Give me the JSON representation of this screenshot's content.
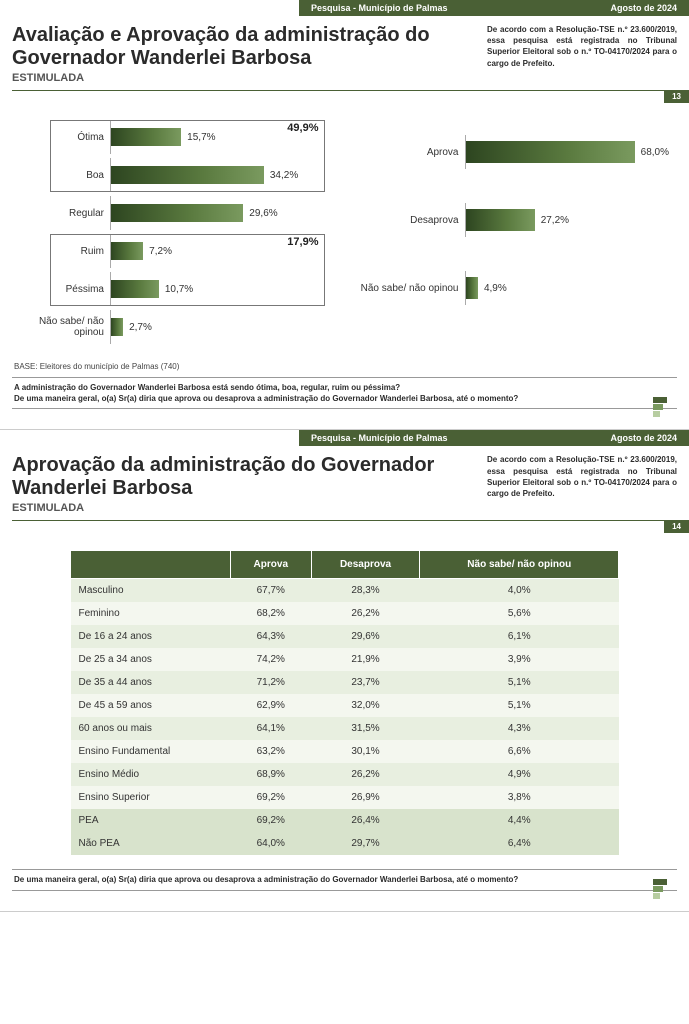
{
  "colors": {
    "brand": "#4a6035",
    "bar_gradient_start": "#2d4520",
    "bar_gradient_mid": "#5a7a3f",
    "bar_gradient_end": "#7a9a5f",
    "row_even": "#e8efe0",
    "row_odd": "#f4f7ef",
    "row_alt": "#d8e3cc"
  },
  "header": {
    "survey_label": "Pesquisa - Município de Palmas",
    "date_label": "Agosto de 2024",
    "disclaimer": "De acordo com a Resolução-TSE n.º 23.600/2019, essa pesquisa está registrada no Tribunal Superior Eleitoral sob o n.º TO-04170/2024 para o cargo de Prefeito."
  },
  "slide1": {
    "title": "Avaliação e Aprovação da administração do Governador Wanderlei Barbosa",
    "subtitle": "ESTIMULADA",
    "page_num": "13",
    "chart_left": {
      "type": "bar",
      "max": 50,
      "bars": [
        {
          "label": "Ótima",
          "value": 15.7,
          "text": "15,7%"
        },
        {
          "label": "Boa",
          "value": 34.2,
          "text": "34,2%"
        },
        {
          "label": "Regular",
          "value": 29.6,
          "text": "29,6%"
        },
        {
          "label": "Ruim",
          "value": 7.2,
          "text": "7,2%"
        },
        {
          "label": "Péssima",
          "value": 10.7,
          "text": "10,7%"
        },
        {
          "label": "Não sabe/ não opinou",
          "value": 2.7,
          "text": "2,7%"
        }
      ],
      "groups": [
        {
          "label": "49,9%",
          "start": 0,
          "end": 1
        },
        {
          "label": "17,9%",
          "start": 3,
          "end": 4
        }
      ]
    },
    "chart_right": {
      "type": "bar",
      "max": 80,
      "bars": [
        {
          "label": "Aprova",
          "value": 68.0,
          "text": "68,0%"
        },
        {
          "label": "Desaprova",
          "value": 27.2,
          "text": "27,2%"
        },
        {
          "label": "Não sabe/ não opinou",
          "value": 4.9,
          "text": "4,9%"
        }
      ]
    },
    "base": "BASE: Eleitores do município de Palmas (740)",
    "q1": "A administração do Governador Wanderlei Barbosa está sendo ótima, boa, regular, ruim ou péssima?",
    "q2": "De uma maneira geral, o(a) Sr(a) diria que aprova ou desaprova a administração do Governador Wanderlei Barbosa, até o momento?"
  },
  "slide2": {
    "title": "Aprovação da administração do Governador Wanderlei Barbosa",
    "subtitle": "ESTIMULADA",
    "page_num": "14",
    "table": {
      "columns": [
        "",
        "Aprova",
        "Desaprova",
        "Não sabe/ não opinou"
      ],
      "row_styles": [
        "r0",
        "r1",
        "r0",
        "r1",
        "r0",
        "r1",
        "r0",
        "r1",
        "r0",
        "r1",
        "alt",
        "alt"
      ],
      "rows": [
        [
          "Masculino",
          "67,7%",
          "28,3%",
          "4,0%"
        ],
        [
          "Feminino",
          "68,2%",
          "26,2%",
          "5,6%"
        ],
        [
          "De 16 a 24 anos",
          "64,3%",
          "29,6%",
          "6,1%"
        ],
        [
          "De 25 a 34 anos",
          "74,2%",
          "21,9%",
          "3,9%"
        ],
        [
          "De 35 a 44 anos",
          "71,2%",
          "23,7%",
          "5,1%"
        ],
        [
          "De 45 a 59 anos",
          "62,9%",
          "32,0%",
          "5,1%"
        ],
        [
          "60 anos ou mais",
          "64,1%",
          "31,5%",
          "4,3%"
        ],
        [
          "Ensino Fundamental",
          "63,2%",
          "30,1%",
          "6,6%"
        ],
        [
          "Ensino Médio",
          "68,9%",
          "26,2%",
          "4,9%"
        ],
        [
          "Ensino Superior",
          "69,2%",
          "26,9%",
          "3,8%"
        ],
        [
          "PEA",
          "69,2%",
          "26,4%",
          "4,4%"
        ],
        [
          "Não PEA",
          "64,0%",
          "29,7%",
          "6,4%"
        ]
      ]
    },
    "q": "De uma maneira geral, o(a) Sr(a) diria que aprova ou desaprova a administração do Governador Wanderlei Barbosa, até o momento?"
  }
}
